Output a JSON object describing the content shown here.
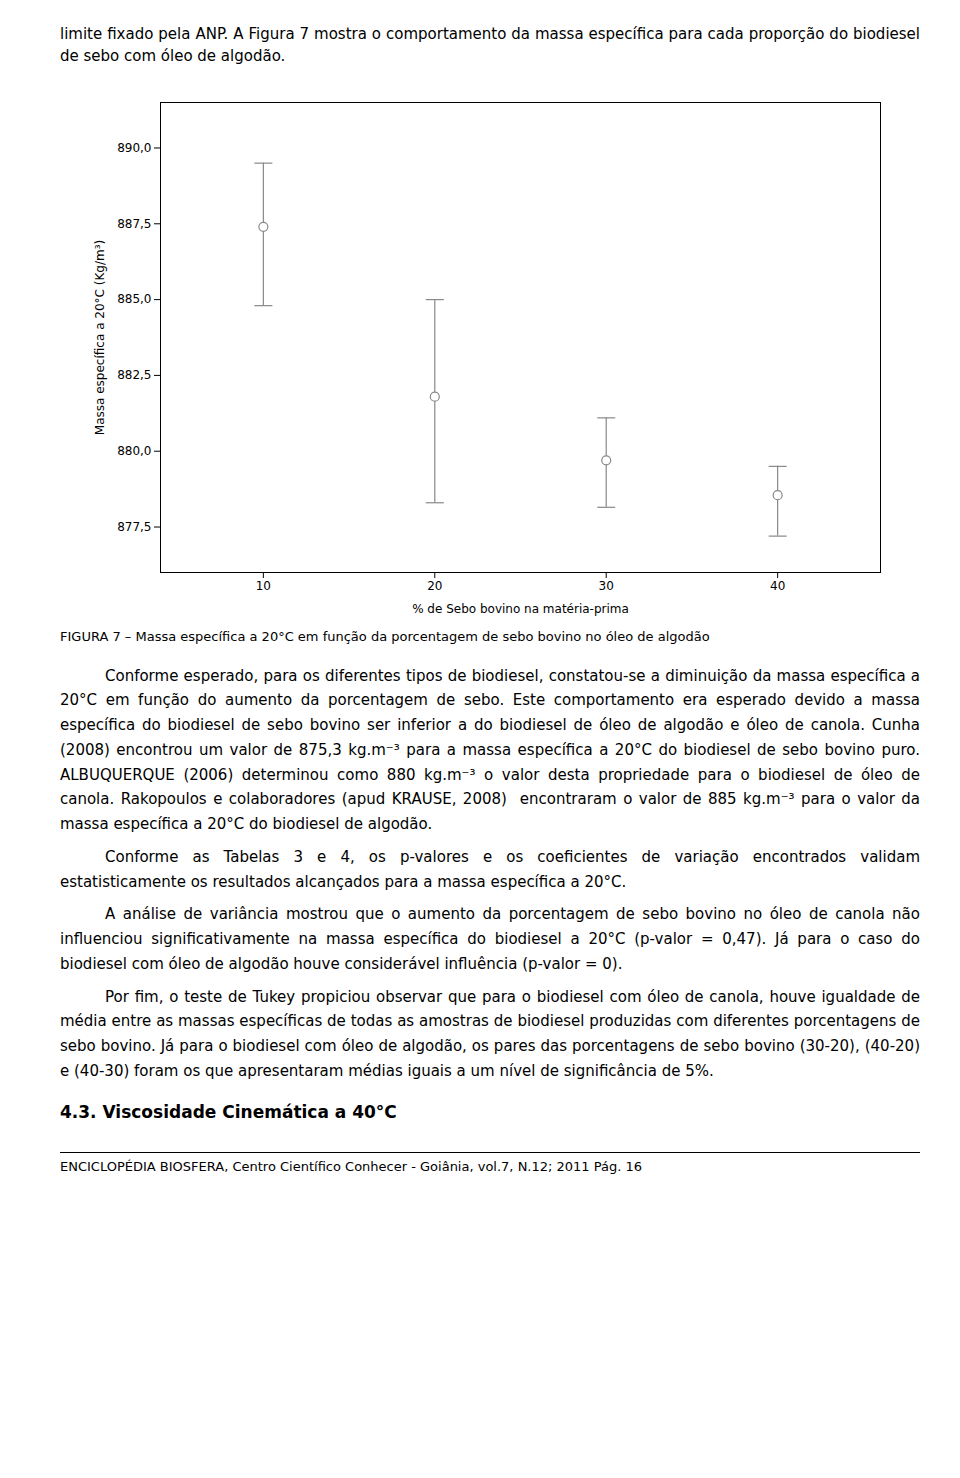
{
  "chart_data": {
    "type": "errorbar",
    "xlabel": "% de Sebo bovino na matéria-prima",
    "ylabel": "Massa específica a 20°C (Kg/m³)",
    "caption": "FIGURA 7 – Massa específica a 20°C em função da porcentagem de sebo bovino no óleo de algodão",
    "x": [
      10,
      20,
      30,
      40
    ],
    "values": [
      887.4,
      881.8,
      879.7,
      878.55
    ],
    "error_upper": [
      2.1,
      3.2,
      1.4,
      0.95
    ],
    "error_lower": [
      2.6,
      3.5,
      1.55,
      1.35
    ],
    "color": "#888888",
    "marker": "circle",
    "xlim": [
      4,
      46
    ],
    "xticks": [
      10,
      20,
      30,
      40
    ],
    "ylim": [
      876.0,
      891.5
    ],
    "yticks": [
      {
        "value": 877.5,
        "label": "877,5"
      },
      {
        "value": 880.0,
        "label": "880,0"
      },
      {
        "value": 882.5,
        "label": "882,5"
      },
      {
        "value": 885.0,
        "label": "885,0"
      },
      {
        "value": 887.5,
        "label": "887,5"
      },
      {
        "value": 890.0,
        "label": "890,0"
      }
    ],
    "grid": false
  },
  "text_top": "limite fixado pela ANP. A Figura 7 mostra o comportamento da massa específica para cada proporção do biodiesel de sebo com óleo de algodão.",
  "paragraphs": [
    "Conforme esperado, para os diferentes tipos de biodiesel, constatou-se a diminuição da massa específica a 20°C em função do aumento da porcentagem de sebo. Este comportamento era esperado devido a massa específica do biodiesel de sebo bovino ser inferior a do biodiesel de óleo de algodão e óleo de canola. Cunha (2008) encontrou um valor de 875,3 kg.m⁻³ para a massa específica a 20°C do biodiesel de sebo bovino puro. ALBUQUERQUE (2006) determinou como 880 kg.m⁻³ o valor desta propriedade para o biodiesel de óleo de canola. Rakopoulos e colaboradores (apud KRAUSE, 2008)  encontraram o valor de 885 kg.m⁻³ para o valor da massa específica a 20°C do biodiesel de algodão.",
    "Conforme as Tabelas 3 e 4, os p-valores e os coeficientes de variação encontrados validam estatisticamente os resultados alcançados para a massa específica a 20°C.",
    "A análise de variância mostrou que o aumento da porcentagem de sebo bovino no óleo de canola não influenciou significativamente na massa específica do biodiesel a 20°C (p-valor = 0,47). Já para o caso do biodiesel com óleo de algodão houve considerável influência (p-valor = 0).",
    "Por fim, o teste de Tukey propiciou observar que para o biodiesel com óleo de canola, houve igualdade de média entre as massas específicas de todas as amostras de biodiesel produzidas com diferentes porcentagens de sebo bovino. Já para o biodiesel com óleo de algodão, os pares das porcentagens de sebo bovino (30-20), (40-20) e (40-30) foram os que apresentaram médias iguais a um nível de significância de 5%."
  ],
  "section": "4.3. Viscosidade Cinemática a 40°C",
  "footer": "ENCICLOPÉDIA BIOSFERA, Centro Científico Conhecer - Goiânia, vol.7, N.12; 2011 Pág.  16"
}
